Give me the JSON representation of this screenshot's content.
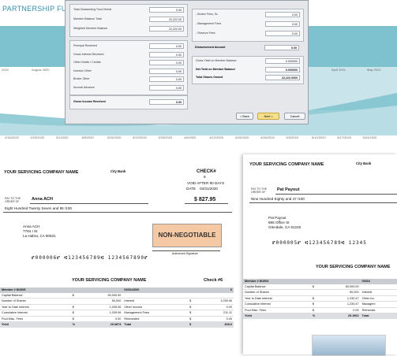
{
  "app": {
    "title": "PARTNERSHIP FUND"
  },
  "chart": {
    "months": [
      "2020",
      "August 2020",
      "April 2021",
      "May 2021"
    ],
    "dates": [
      "2/16/2020",
      "3/23/2020",
      "3/1/2020",
      "3/8/2020",
      "3/15/2020",
      "3/22/2020",
      "3/29/2020",
      "4/5/2020",
      "4/12/2020",
      "4/19/2020",
      "4/26/2020",
      "5/3/2020",
      "5/10/2020",
      "5/17/2020",
      "5/24/2020"
    ]
  },
  "wizard": {
    "left_section1": [
      {
        "label": "Total Outstanding Trust Deeds",
        "value": "0.00"
      },
      {
        "label": "Member Balance Total",
        "value": "22,222.00"
      },
      {
        "label": "Weighted Member Balance",
        "value": "22,222.00"
      }
    ],
    "left_section2": [
      {
        "label": "Principal Received",
        "value": "0.00"
      },
      {
        "label": "Gross Interest Received",
        "value": "0.00"
      },
      {
        "label": "Other Debits / Credits",
        "value": "0.00"
      },
      {
        "label": "Investor Other",
        "value": "0.00"
      },
      {
        "label": "Broker Other",
        "value": "0.00"
      },
      {
        "label": "Accrual Advance",
        "value": "0.00"
      }
    ],
    "gross_income": {
      "label": "Gross Income Received",
      "value": "0.00"
    },
    "right_section1": [
      {
        "label": "- Broker Fees, Sc",
        "value": "0.00"
      },
      {
        "label": "- Management Fees",
        "value": "0.00"
      },
      {
        "label": "- Reserve Fees",
        "value": "0.00"
      }
    ],
    "disbursement": {
      "label": "Disbursement Amount",
      "value": "0.00"
    },
    "right_section2": [
      {
        "label": "Gross Yield on Member Balance",
        "value": "0.000000"
      },
      {
        "label": "Net Yield on Member Balance",
        "value": "0.000000"
      },
      {
        "label": "Total Shares Owned",
        "value": "22,222.0000"
      }
    ],
    "buttons": {
      "back": "< Back",
      "next": "Next >",
      "cancel": "Cancel"
    }
  },
  "check1": {
    "company": "YOUR SERVICING COMPANY NAME",
    "bank": "City Bank",
    "check_label": "CHECK#",
    "check_no": "6",
    "void_text": "VOID AFTER 90 DAYS",
    "date_label": "DATE",
    "date": "03/31/2020",
    "payto_line1": "PAY TO THE",
    "payto_line2": "ORDER OF",
    "payee": "Anna ACH",
    "amount": "$ 827.95",
    "amount_words": "Eight Hundred Twenty Seven and 95 /100",
    "address": [
      "Anna ACH",
      "7784 I St",
      "La Habra, CA 90631"
    ],
    "non_negotiable": "NON-NEGOTIABLE",
    "signature_label": "Authorized Signature",
    "micr": "⑈000006⑈   ⑆123456789⑆ 1234567890⑈",
    "stub_company": "YOUR SERVICING COMPANY NAME",
    "stub_check": "Check #6",
    "stub": {
      "head": [
        "Member # M1005",
        "",
        "",
        "03/31/2020",
        "",
        "6"
      ],
      "rows": [
        [
          "Capital Balance",
          "$",
          "50,000.00",
          "",
          "",
          ""
        ],
        [
          "Number of Shares",
          "",
          "50,000",
          "Interest",
          "$",
          "1,039.06"
        ],
        [
          "Year to Date Interest",
          "$",
          "1,039.06",
          "Other Income",
          "$",
          "0.00"
        ],
        [
          "Cumulative Interest",
          "$",
          "1,039.06",
          "Management Fees",
          "$",
          "211.11"
        ],
        [
          "Pool Misc. Fees",
          "$",
          "0.00",
          "Reinvested",
          "$",
          "0.00"
        ]
      ],
      "foot": [
        "Yield",
        "%",
        "29.6874",
        "Total",
        "$",
        "828.0"
      ]
    }
  },
  "check2": {
    "company": "YOUR SERVICING COMPANY NAME",
    "bank": "City Bank",
    "payto_line1": "PAY TO THE",
    "payto_line2": "ORDER OF",
    "payee": "Pat Payout",
    "amount_words": "Nine Hundred Eighty and 47 /100",
    "address": [
      "Pat Payout",
      "885 Office St",
      "Glendale, CA 91225"
    ],
    "micr": "⑈000005⑈  ⑆123456789⑆ 12345",
    "stub_company": "YOUR SERVICING COMPANY NAME",
    "stub": {
      "head": [
        "Member # M1004",
        "",
        "",
        "03/31/"
      ],
      "rows": [
        [
          "Capital Balance",
          "$",
          "50,000.00",
          ""
        ],
        [
          "Number of Shares",
          "",
          "50,000",
          "Interest"
        ],
        [
          "Year to Date Interest",
          "$",
          "1,230.47",
          "Other Inc"
        ],
        [
          "Cumulative Interest",
          "$",
          "1,230.47",
          "Managem"
        ],
        [
          "Pool Misc. Fees",
          "$",
          "0.00",
          "Reinveste"
        ]
      ],
      "foot": [
        "Yield",
        "%",
        "25.1502",
        "Total"
      ]
    }
  }
}
